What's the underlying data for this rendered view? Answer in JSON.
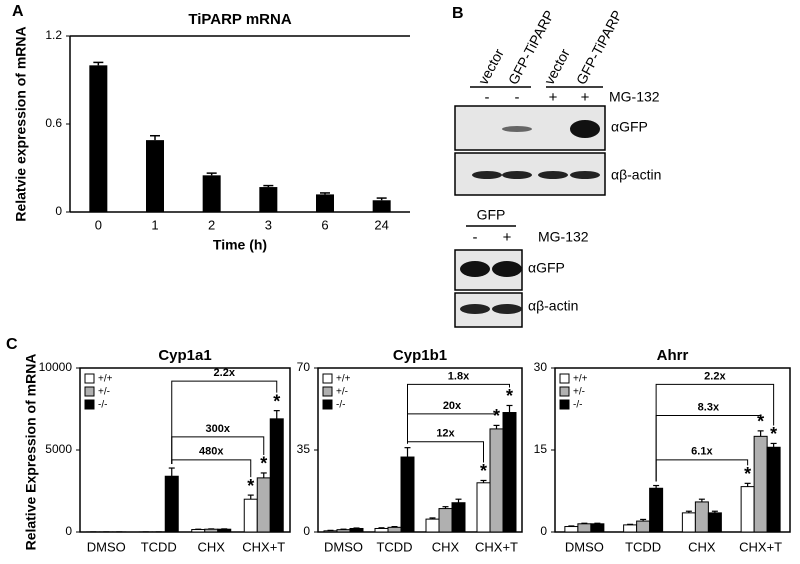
{
  "panel_labels": [
    "A",
    "B",
    "C"
  ],
  "chart_data": [
    {
      "type": "bar",
      "title": "TiPARP mRNA",
      "y_label": "Relatvie expression of mRNA",
      "x_label": "Time (h)",
      "categories": [
        "0",
        "1",
        "2",
        "3",
        "6",
        "24"
      ],
      "values": [
        1.0,
        0.49,
        0.25,
        0.17,
        0.12,
        0.08
      ],
      "errors": [
        0.02,
        0.03,
        0.015,
        0.01,
        0.01,
        0.015
      ],
      "color": "#000000",
      "ylim": [
        0,
        1.2
      ],
      "yticks": [
        0,
        0.6,
        1.2
      ]
    },
    {
      "type": "grouped-bar",
      "title": "Cyp1a1",
      "categories": [
        "DMSO",
        "TCDD",
        "CHX",
        "CHX+T"
      ],
      "series": [
        {
          "name": "+/+",
          "color": "#ffffff",
          "values": [
            5,
            5,
            150,
            2000
          ],
          "errors": [
            0,
            0,
            20,
            250
          ]
        },
        {
          "name": "+/-",
          "color": "#b0b0b0",
          "values": [
            5,
            5,
            170,
            3300
          ],
          "errors": [
            0,
            0,
            20,
            300
          ]
        },
        {
          "name": "-/-",
          "color": "#000000",
          "values": [
            5,
            3400,
            170,
            6900
          ],
          "errors": [
            0,
            500,
            20,
            500
          ]
        }
      ],
      "annotations": [
        "480x",
        "300x",
        "2.2x"
      ],
      "significance_marker": "*",
      "ylim": [
        0,
        10000
      ],
      "yticks": [
        0,
        5000,
        10000
      ]
    },
    {
      "type": "grouped-bar",
      "title": "Cyp1b1",
      "categories": [
        "DMSO",
        "TCDD",
        "CHX",
        "CHX+T"
      ],
      "series": [
        {
          "name": "+/+",
          "color": "#ffffff",
          "values": [
            0.5,
            1.5,
            5.5,
            21
          ],
          "errors": [
            0.2,
            0.3,
            0.5,
            1
          ]
        },
        {
          "name": "+/-",
          "color": "#b0b0b0",
          "values": [
            1,
            2,
            10,
            44
          ],
          "errors": [
            0.2,
            0.3,
            0.8,
            1.5
          ]
        },
        {
          "name": "-/-",
          "color": "#000000",
          "values": [
            1.5,
            32,
            12.5,
            51
          ],
          "errors": [
            0.2,
            4,
            1.5,
            3
          ]
        }
      ],
      "annotations": [
        "12x",
        "20x",
        "1.8x"
      ],
      "significance_marker": "*",
      "ylim": [
        0,
        70
      ],
      "yticks": [
        0,
        35,
        70
      ]
    },
    {
      "type": "grouped-bar",
      "title": "Ahrr",
      "categories": [
        "DMSO",
        "TCDD",
        "CHX",
        "CHX+T"
      ],
      "series": [
        {
          "name": "+/+",
          "color": "#ffffff",
          "values": [
            1,
            1.3,
            3.5,
            8.3
          ],
          "errors": [
            0.1,
            0.1,
            0.3,
            0.6
          ]
        },
        {
          "name": "+/-",
          "color": "#b0b0b0",
          "values": [
            1.5,
            2,
            5.5,
            17.5
          ],
          "errors": [
            0.1,
            0.3,
            0.5,
            1
          ]
        },
        {
          "name": "-/-",
          "color": "#000000",
          "values": [
            1.5,
            8,
            3.5,
            15.5
          ],
          "errors": [
            0.1,
            0.5,
            0.3,
            0.7
          ]
        }
      ],
      "annotations": [
        "6.1x",
        "8.3x",
        "2.2x"
      ],
      "significance_marker": "*",
      "ylim": [
        0,
        30
      ],
      "yticks": [
        0,
        15,
        30
      ]
    }
  ],
  "c_y_label": "Relative Expression of mRNA",
  "blots": [
    {
      "lanes": [
        "vector",
        "GFP-TiPARP",
        "vector",
        "GFP-TiPARP"
      ],
      "signs": [
        "-",
        "-",
        "+",
        "+"
      ],
      "treatment": "MG-132",
      "antibodies": [
        "αGFP",
        "αβ-actin"
      ]
    },
    {
      "group": "GFP",
      "signs": [
        "-",
        "+"
      ],
      "treatment": "MG-132",
      "antibodies": [
        "αGFP",
        "αβ-actin"
      ]
    }
  ]
}
